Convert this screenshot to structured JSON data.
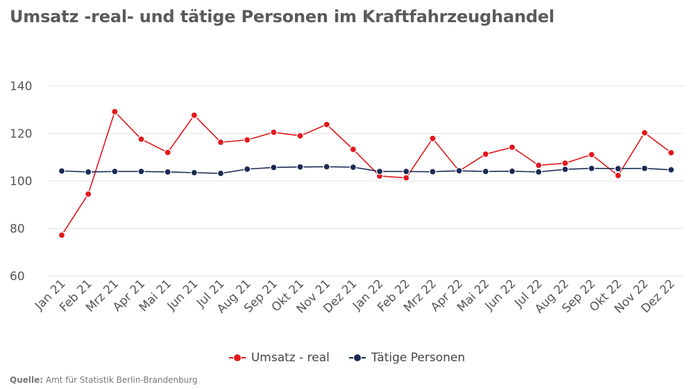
{
  "title": "Umsatz -real- und tätige Personen im Kraftfahrzeughandel",
  "source": {
    "label": "Quelle:",
    "text": "Amt für Statistik Berlin-Brandenburg"
  },
  "chart_data": {
    "type": "line",
    "title": "Umsatz -real- und tätige Personen im Kraftfahrzeughandel",
    "xlabel": "",
    "ylabel": "",
    "ylim": [
      60,
      140
    ],
    "yticks": [
      60,
      80,
      100,
      120,
      140
    ],
    "grid": true,
    "legend_position": "bottom",
    "categories": [
      "Jan 21",
      "Feb 21",
      "Mrz 21",
      "Apr 21",
      "Mai 21",
      "Jun 21",
      "Jul 21",
      "Aug 21",
      "Sep 21",
      "Okt 21",
      "Nov 21",
      "Dez 21",
      "Jan 22",
      "Feb 22",
      "Mrz 22",
      "Apr 22",
      "Mai 22",
      "Jun 22",
      "Jul 22",
      "Aug 22",
      "Sep 22",
      "Okt 22",
      "Nov 22",
      "Dez 22"
    ],
    "series": [
      {
        "name": "Umsatz - real",
        "color": "#e3171b",
        "values": [
          77.2,
          94.5,
          129.2,
          117.6,
          112.0,
          127.7,
          116.3,
          117.3,
          120.5,
          119.0,
          123.8,
          113.3,
          102.1,
          101.3,
          117.9,
          104.2,
          111.3,
          114.2,
          106.6,
          107.5,
          111.1,
          102.3,
          120.3,
          111.9
        ]
      },
      {
        "name": "Tätige Personen",
        "color": "#1b2a55",
        "values": [
          104.2,
          103.8,
          104.0,
          104.0,
          103.8,
          103.5,
          103.2,
          105.0,
          105.7,
          105.9,
          106.0,
          105.8,
          104.0,
          104.0,
          103.9,
          104.3,
          104.0,
          104.1,
          103.8,
          104.9,
          105.3,
          105.2,
          105.3,
          104.7
        ]
      }
    ]
  }
}
